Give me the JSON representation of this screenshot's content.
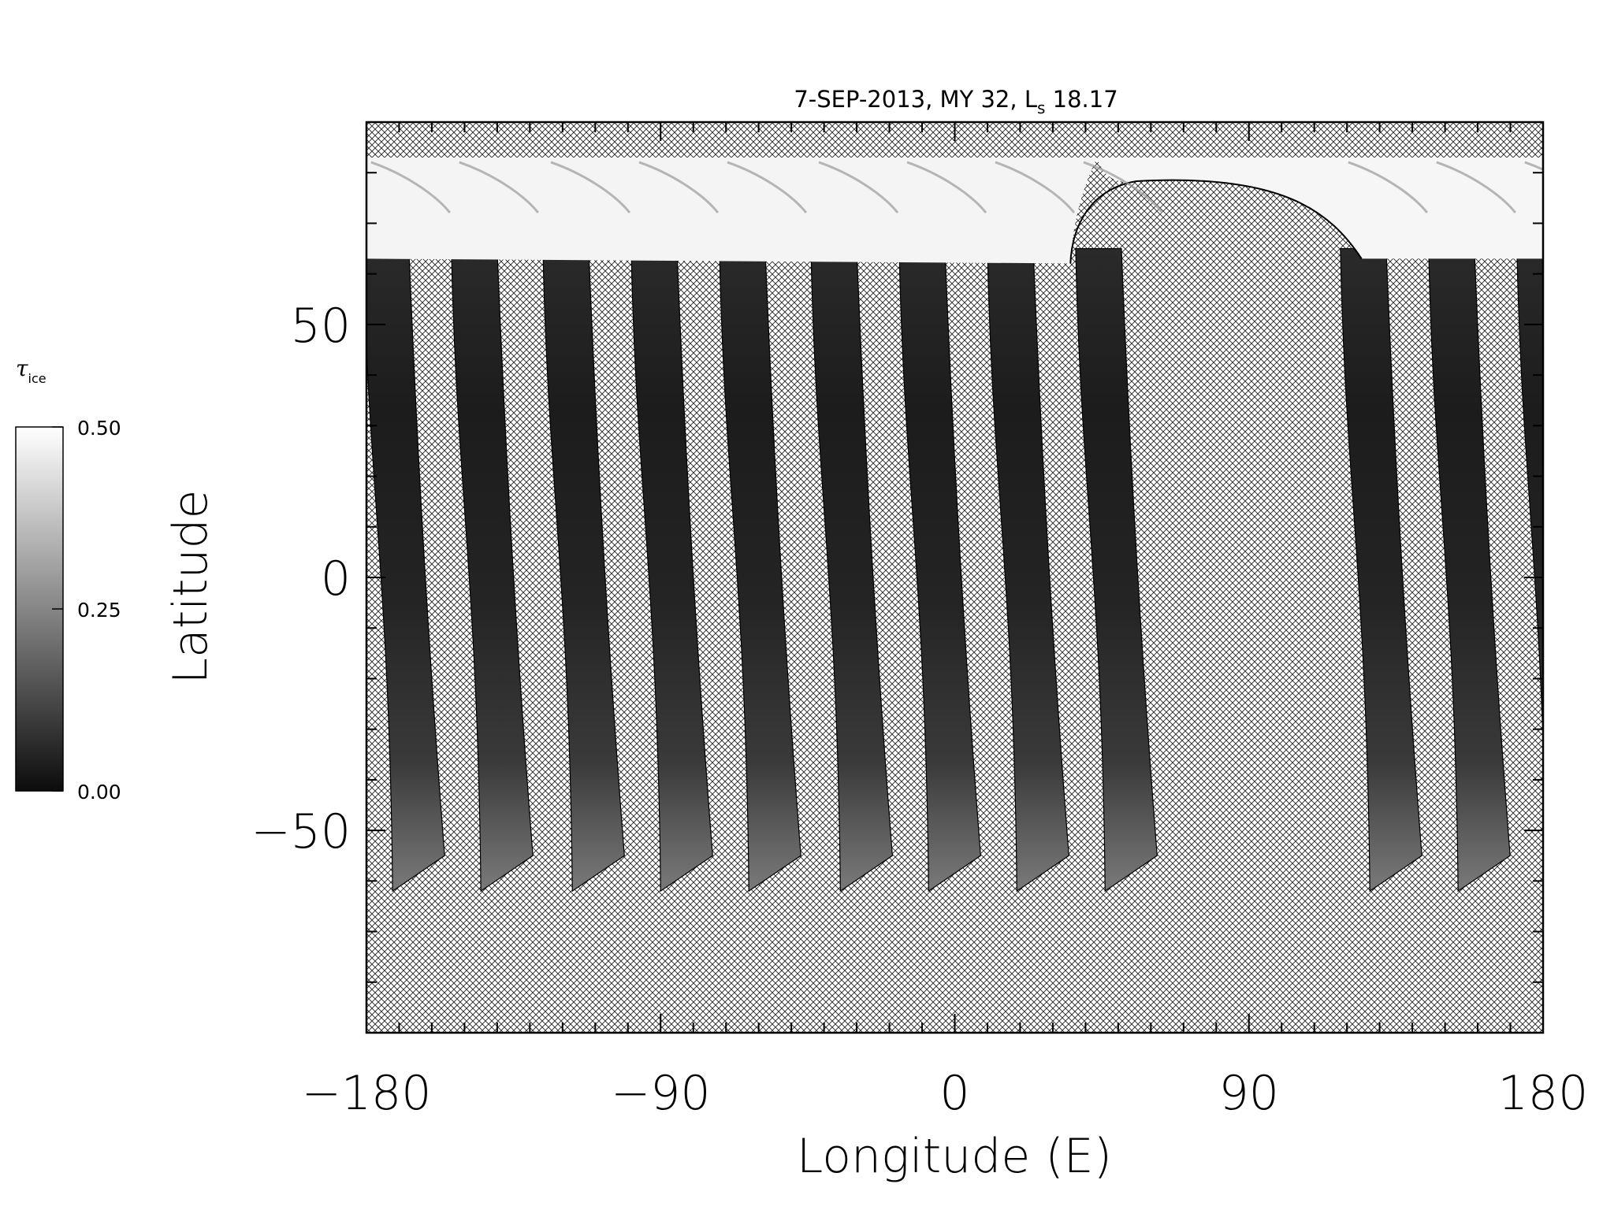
{
  "title": {
    "prefix": "7-SEP-2013, MY 32,  L",
    "subscript": "s",
    "value": " 18.17"
  },
  "colorbar": {
    "label_symbol": "τ",
    "label_subscript": "ice",
    "ticks": [
      "0.50",
      "0.25",
      "0.00"
    ],
    "range": [
      0.0,
      0.5
    ],
    "colors": [
      "#0c0c0c",
      "#ffffff"
    ]
  },
  "chart_data": {
    "type": "heatmap",
    "title": "7-SEP-2013, MY 32,  Ls 18.17",
    "xlabel": "Longitude (E)",
    "ylabel": "Latitude",
    "xlim": [
      -180,
      180
    ],
    "ylim": [
      -90,
      90
    ],
    "xticks": [
      -180,
      -90,
      0,
      90,
      180
    ],
    "xtick_labels": [
      "−180",
      "−90",
      "0",
      "90",
      "180"
    ],
    "yticks": [
      -50,
      0,
      50
    ],
    "ytick_labels": [
      "−50",
      "0",
      "50"
    ],
    "no_data_pattern": "cross-hatch",
    "north_polar_cap": {
      "edge_latitude": 63,
      "top_latitude": 83,
      "tau_ice": 0.5
    },
    "swaths": [
      {
        "lon_north": -181,
        "lon_south": -172,
        "lat_south": -62
      },
      {
        "lon_north": -154,
        "lon_south": -145,
        "lat_south": -62
      },
      {
        "lon_north": -126,
        "lon_south": -117,
        "lat_south": -62
      },
      {
        "lon_north": -99,
        "lon_south": -90,
        "lat_south": -62
      },
      {
        "lon_north": -72,
        "lon_south": -63,
        "lat_south": -62
      },
      {
        "lon_north": -44,
        "lon_south": -35,
        "lat_south": -62
      },
      {
        "lon_north": -17,
        "lon_south": -8,
        "lat_south": -62
      },
      {
        "lon_north": 10,
        "lon_south": 19,
        "lat_south": -62
      },
      {
        "lon_north": 37,
        "lon_south": 46,
        "lat_south": -62
      },
      {
        "lon_north": 118,
        "lon_south": 127,
        "lat_south": -62
      },
      {
        "lon_north": 145,
        "lon_south": 154,
        "lat_south": -62
      },
      {
        "lon_north": 172,
        "lon_south": 181,
        "lat_south": -62
      }
    ],
    "data_gap": {
      "lon_west": 46,
      "lon_east": 110
    }
  }
}
